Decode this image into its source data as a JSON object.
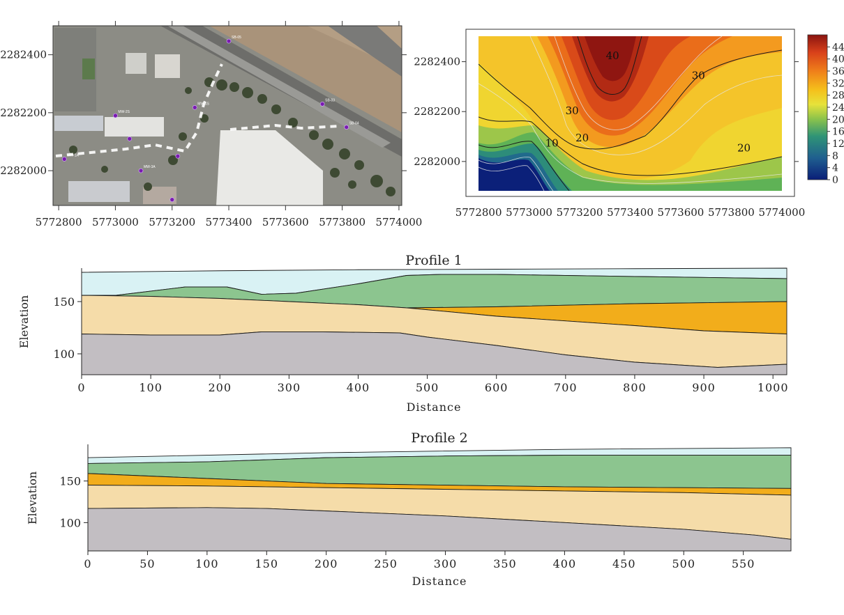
{
  "chart_data": [
    {
      "id": "map",
      "type": "scatter",
      "title": "",
      "xlabel": "",
      "ylabel": "",
      "xlim": [
        5772780,
        5774010
      ],
      "ylim": [
        2281880,
        2282500
      ],
      "xticks": [
        5772800,
        5773000,
        5773200,
        5773400,
        5773600,
        5773800,
        5774000
      ],
      "yticks": [
        2282000,
        2282200,
        2282400
      ],
      "background": "aerial imagery",
      "points": [
        {
          "label": "SB-05",
          "x": 5773400,
          "y": 2282447
        },
        {
          "label": "SB-03",
          "x": 5773730,
          "y": 2282230
        },
        {
          "label": "SB-04",
          "x": 5773815,
          "y": 2282150
        },
        {
          "label": "MW-1S",
          "x": 5773280,
          "y": 2282218
        },
        {
          "label": "MW-2S",
          "x": 5773000,
          "y": 2282190
        },
        {
          "label": "MW-1A",
          "x": 5772820,
          "y": 2282040
        },
        {
          "label": "MW-3A",
          "x": 5773090,
          "y": 2282000
        },
        {
          "label": "",
          "x": 5773050,
          "y": 2282110
        },
        {
          "label": "",
          "x": 5773220,
          "y": 2282050
        },
        {
          "label": "",
          "x": 5773200,
          "y": 2281900
        }
      ],
      "profile_line_color": "#ffffff"
    },
    {
      "id": "contour",
      "type": "heatmap",
      "title": "",
      "xlabel": "",
      "ylabel": "",
      "xlim": [
        5772750,
        5774050
      ],
      "ylim": [
        2281860,
        2282530
      ],
      "xticks": [
        5772800,
        5773000,
        5773200,
        5773400,
        5773600,
        5773800,
        5774000
      ],
      "yticks": [
        2282000,
        2282200,
        2282400
      ],
      "colorbar_ticks": [
        0,
        4,
        8,
        12,
        16,
        20,
        24,
        28,
        32,
        36,
        40,
        44
      ],
      "colorbar_range": [
        0,
        48
      ],
      "contour_labels": [
        {
          "text": "40",
          "x": 5773330,
          "y": 2282410
        },
        {
          "text": "30",
          "x": 5773670,
          "y": 2282330
        },
        {
          "text": "30",
          "x": 5773170,
          "y": 2282190
        },
        {
          "text": "20",
          "x": 5773210,
          "y": 2282080
        },
        {
          "text": "10",
          "x": 5773090,
          "y": 2282060
        },
        {
          "text": "20",
          "x": 5773850,
          "y": 2282040
        }
      ]
    },
    {
      "id": "profile1",
      "type": "area",
      "title": "Profile 1",
      "xlabel": "Distance",
      "ylabel": "Elevation",
      "xlim": [
        0,
        1020
      ],
      "ylim": [
        80,
        182
      ],
      "xticks": [
        0,
        100,
        200,
        300,
        400,
        500,
        600,
        700,
        800,
        900,
        1000
      ],
      "yticks": [
        100,
        150
      ],
      "layers": [
        {
          "color": "#d9f2f4",
          "top": [
            [
              0,
              178
            ],
            [
              200,
              179.5
            ],
            [
              400,
              180.5
            ],
            [
              600,
              181
            ],
            [
              800,
              181.5
            ],
            [
              1020,
              182
            ]
          ],
          "bottom": [
            [
              0,
              156
            ],
            [
              50,
              156
            ],
            [
              150,
              164
            ],
            [
              210,
              164
            ],
            [
              260,
              157
            ],
            [
              310,
              158
            ],
            [
              400,
              167
            ],
            [
              470,
              175
            ],
            [
              520,
              176
            ],
            [
              600,
              176
            ],
            [
              800,
              174
            ],
            [
              1020,
              172
            ]
          ]
        },
        {
          "color": "#8cc58f",
          "top": [
            [
              0,
              156
            ],
            [
              50,
              156
            ],
            [
              150,
              164
            ],
            [
              210,
              164
            ],
            [
              260,
              157
            ],
            [
              310,
              158
            ],
            [
              400,
              167
            ],
            [
              470,
              175
            ],
            [
              520,
              176
            ],
            [
              600,
              176
            ],
            [
              800,
              174
            ],
            [
              1020,
              172
            ]
          ],
          "bottom": [
            [
              0,
              156
            ],
            [
              100,
              155
            ],
            [
              200,
              153
            ],
            [
              300,
              150
            ],
            [
              400,
              147
            ],
            [
              470,
              144
            ],
            [
              600,
              145
            ],
            [
              800,
              148
            ],
            [
              1020,
              150
            ]
          ]
        },
        {
          "color": "#f2ad1b",
          "top": [
            [
              470,
              144
            ],
            [
              600,
              145
            ],
            [
              800,
              148
            ],
            [
              1020,
              150
            ]
          ],
          "bottom": [
            [
              470,
              144
            ],
            [
              600,
              136
            ],
            [
              800,
              127
            ],
            [
              900,
              122
            ],
            [
              1020,
              119
            ]
          ]
        },
        {
          "color": "#f5dca9",
          "top": [
            [
              0,
              156
            ],
            [
              100,
              155
            ],
            [
              200,
              153
            ],
            [
              300,
              150
            ],
            [
              400,
              147
            ],
            [
              470,
              144
            ],
            [
              600,
              136
            ],
            [
              800,
              127
            ],
            [
              900,
              122
            ],
            [
              1020,
              119
            ]
          ],
          "bottom": [
            [
              0,
              119
            ],
            [
              100,
              118
            ],
            [
              200,
              118
            ],
            [
              260,
              121
            ],
            [
              350,
              121
            ],
            [
              460,
              120
            ],
            [
              500,
              116
            ],
            [
              600,
              108
            ],
            [
              700,
              99
            ],
            [
              800,
              92
            ],
            [
              920,
              87
            ],
            [
              1020,
              90
            ]
          ]
        },
        {
          "color": "#c2bec2",
          "top": [
            [
              0,
              119
            ],
            [
              100,
              118
            ],
            [
              200,
              118
            ],
            [
              260,
              121
            ],
            [
              350,
              121
            ],
            [
              460,
              120
            ],
            [
              500,
              116
            ],
            [
              600,
              108
            ],
            [
              700,
              99
            ],
            [
              800,
              92
            ],
            [
              920,
              87
            ],
            [
              1020,
              90
            ]
          ],
          "bottom": [
            [
              0,
              80
            ],
            [
              1020,
              80
            ]
          ]
        }
      ]
    },
    {
      "id": "profile2",
      "type": "area",
      "title": "Profile 2",
      "xlabel": "Distance",
      "ylabel": "Elevation",
      "xlim": [
        0,
        590
      ],
      "ylim": [
        66,
        194
      ],
      "xticks": [
        0,
        50,
        100,
        150,
        200,
        250,
        300,
        350,
        400,
        450,
        500,
        550
      ],
      "yticks": [
        100,
        150
      ],
      "layers": [
        {
          "color": "#d9f2f4",
          "top": [
            [
              0,
              178
            ],
            [
              200,
              184
            ],
            [
              400,
              188
            ],
            [
              590,
              190
            ]
          ],
          "bottom": [
            [
              0,
              171
            ],
            [
              100,
              173
            ],
            [
              200,
              178
            ],
            [
              300,
              180
            ],
            [
              400,
              181
            ],
            [
              590,
              181
            ]
          ]
        },
        {
          "color": "#8cc58f",
          "top": [
            [
              0,
              171
            ],
            [
              100,
              173
            ],
            [
              200,
              178
            ],
            [
              300,
              180
            ],
            [
              400,
              181
            ],
            [
              590,
              181
            ]
          ],
          "bottom": [
            [
              0,
              159
            ],
            [
              100,
              153
            ],
            [
              200,
              147
            ],
            [
              300,
              145
            ],
            [
              400,
              143
            ],
            [
              500,
              142
            ],
            [
              590,
              141
            ]
          ]
        },
        {
          "color": "#f2ad1b",
          "top": [
            [
              0,
              159
            ],
            [
              100,
              153
            ],
            [
              200,
              147
            ],
            [
              300,
              145
            ],
            [
              400,
              143
            ],
            [
              500,
              142
            ],
            [
              590,
              141
            ]
          ],
          "bottom": [
            [
              0,
              145
            ],
            [
              100,
              144
            ],
            [
              200,
              142
            ],
            [
              300,
              140
            ],
            [
              400,
              138
            ],
            [
              500,
              136
            ],
            [
              590,
              133
            ]
          ]
        },
        {
          "color": "#f5dca9",
          "top": [
            [
              0,
              145
            ],
            [
              100,
              144
            ],
            [
              200,
              142
            ],
            [
              300,
              140
            ],
            [
              400,
              138
            ],
            [
              500,
              136
            ],
            [
              590,
              133
            ]
          ],
          "bottom": [
            [
              0,
              117
            ],
            [
              100,
              118
            ],
            [
              150,
              117
            ],
            [
              200,
              114
            ],
            [
              300,
              108
            ],
            [
              400,
              100
            ],
            [
              500,
              92
            ],
            [
              560,
              85
            ],
            [
              590,
              80
            ]
          ]
        },
        {
          "color": "#c2bec2",
          "top": [
            [
              0,
              117
            ],
            [
              100,
              118
            ],
            [
              150,
              117
            ],
            [
              200,
              114
            ],
            [
              300,
              108
            ],
            [
              400,
              100
            ],
            [
              500,
              92
            ],
            [
              560,
              85
            ],
            [
              590,
              80
            ]
          ],
          "bottom": [
            [
              0,
              66
            ],
            [
              590,
              66
            ]
          ]
        }
      ]
    }
  ]
}
